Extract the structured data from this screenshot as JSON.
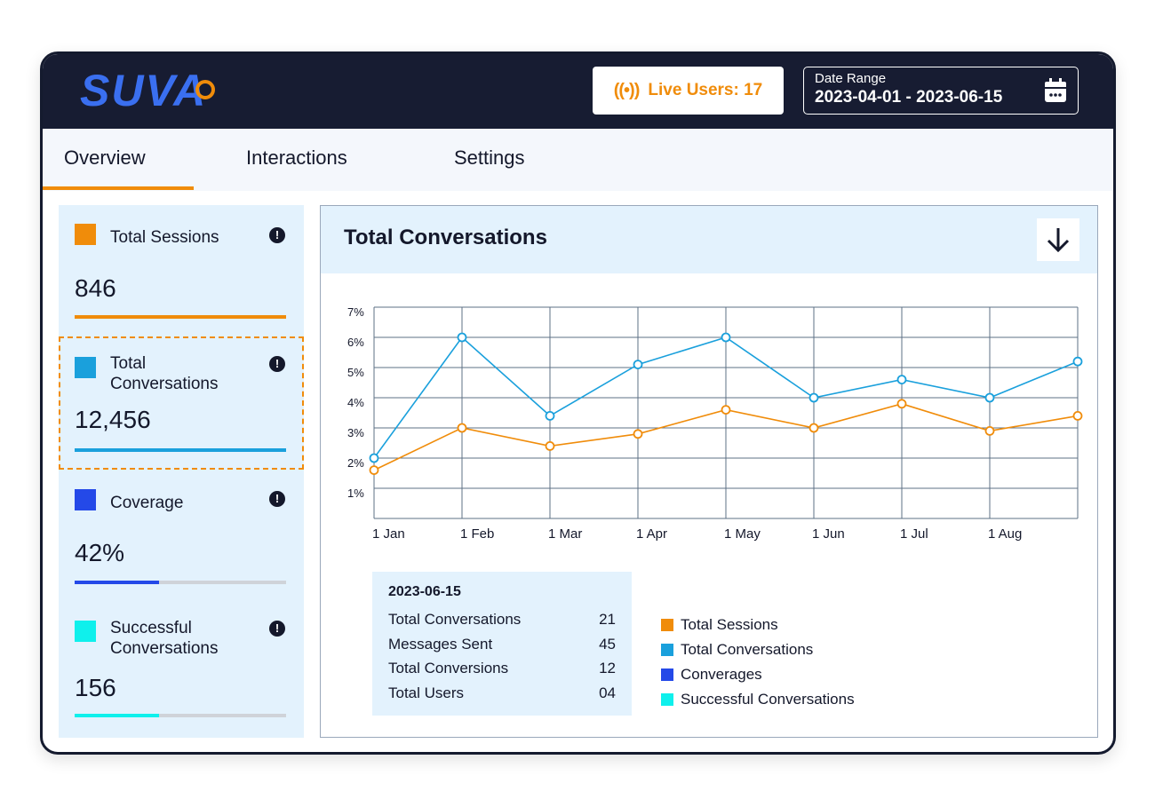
{
  "header": {
    "logo_text": "SUVA",
    "live_users_label": "Live Users: 17",
    "live_icon": "((•))",
    "date_range_label": "Date Range",
    "date_range_value": "2023-04-01 - 2023-06-15"
  },
  "tabs": [
    {
      "label": "Overview",
      "active": true
    },
    {
      "label": "Interactions",
      "active": false
    },
    {
      "label": "Settings",
      "active": false
    }
  ],
  "metrics": [
    {
      "name": "Total Sessions",
      "value": "846",
      "color": "#f08c0a",
      "progress": 1.0
    },
    {
      "name": "Total\nConversations",
      "value": "12,456",
      "color": "#1aa0dc",
      "progress": 1.0
    },
    {
      "name": "Coverage",
      "value": "42%",
      "color": "#2449e8",
      "progress": 0.4
    },
    {
      "name": "Successful\nConversations",
      "value": "156",
      "color": "#0ff0ec",
      "progress": 0.4
    }
  ],
  "info_icon": "!",
  "main": {
    "title": "Total Conversations",
    "download_icon": "arrow-down-icon"
  },
  "tooltip": {
    "date": "2023-06-15",
    "rows": [
      {
        "label": "Total Conversations",
        "value": "21"
      },
      {
        "label": "Messages Sent",
        "value": "45"
      },
      {
        "label": "Total Conversions",
        "value": "12"
      },
      {
        "label": "Total Users",
        "value": "04"
      }
    ]
  },
  "legend": [
    {
      "label": "Total Sessions",
      "color": "#f08c0a"
    },
    {
      "label": "Total Conversations",
      "color": "#1aa0dc"
    },
    {
      "label": "Converages",
      "color": "#2449e8"
    },
    {
      "label": "Successful Conversations",
      "color": "#0ff0ec"
    }
  ],
  "chart_data": {
    "type": "line",
    "title": "Total Conversations",
    "xlabel": "",
    "ylabel": "",
    "categories": [
      "1 Jan",
      "1 Feb",
      "1 Mar",
      "1 Apr",
      "1 May",
      "1 Jun",
      "1 Jul",
      "1 Aug"
    ],
    "y_ticks": [
      "7%",
      "6%",
      "5%",
      "4%",
      "3%",
      "2%",
      "1%"
    ],
    "ylim": [
      0,
      7
    ],
    "grid": true,
    "series": [
      {
        "name": "Total Conversations",
        "color": "#1aa0dc",
        "x": [
          0,
          1,
          2,
          3,
          4,
          5,
          6,
          7,
          8
        ],
        "values": [
          2.0,
          6.0,
          3.4,
          5.1,
          6.0,
          4.0,
          4.6,
          4.0,
          5.2
        ]
      },
      {
        "name": "Total Sessions",
        "color": "#f08c0a",
        "x": [
          0,
          1,
          2,
          3,
          4,
          5,
          6,
          7,
          8
        ],
        "values": [
          1.6,
          3.0,
          2.4,
          2.8,
          3.6,
          3.0,
          3.8,
          2.9,
          3.4
        ]
      }
    ]
  }
}
